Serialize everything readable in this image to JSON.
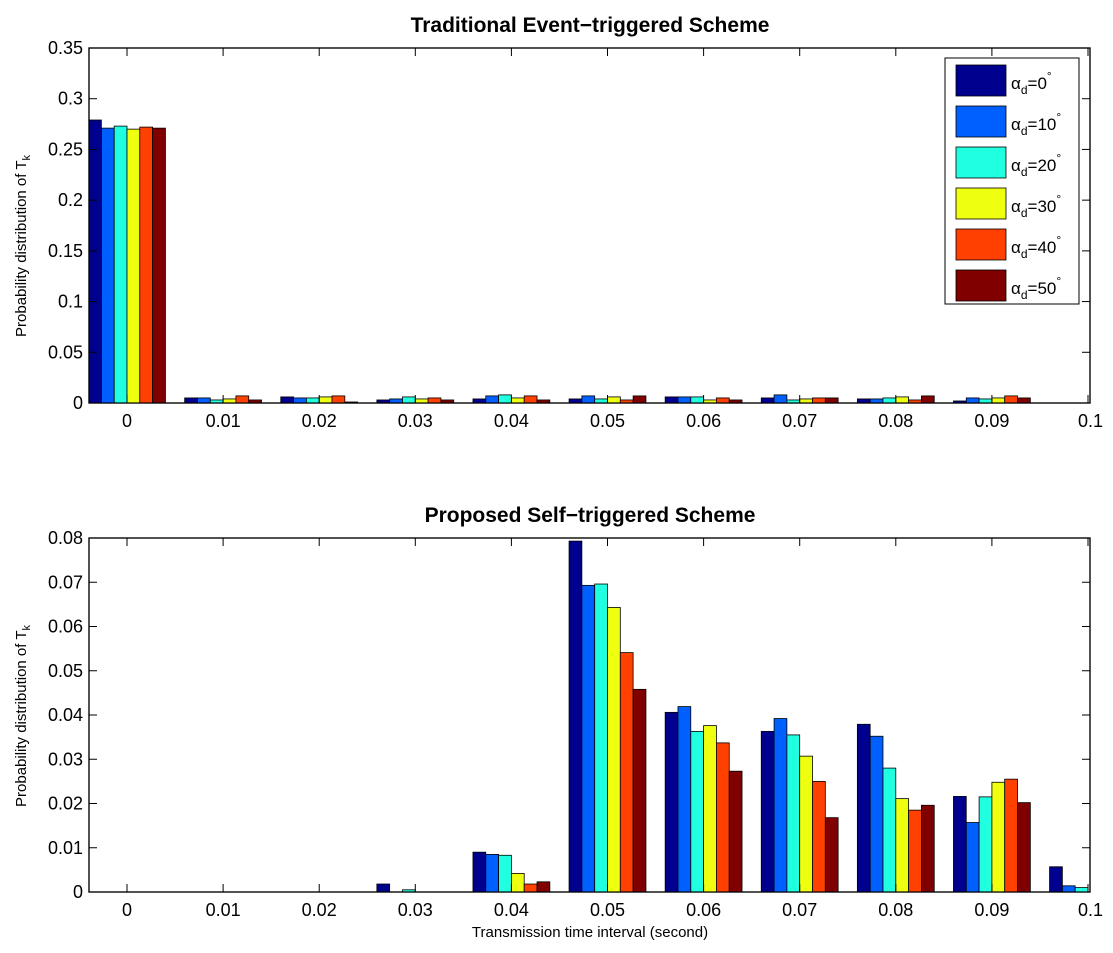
{
  "chart_data": [
    {
      "type": "bar",
      "title": "Traditional Event−triggered Scheme",
      "ylabel": "Probability distribution of T",
      "ylabel_sub": "k",
      "xlabel": "",
      "ylim": [
        0,
        0.35
      ],
      "yticks": [
        "0",
        "0.05",
        "0.1",
        "0.15",
        "0.2",
        "0.25",
        "0.3",
        "0.35"
      ],
      "categories": [
        "0",
        "0.01",
        "0.02",
        "0.03",
        "0.04",
        "0.05",
        "0.06",
        "0.07",
        "0.08",
        "0.09",
        "0.1"
      ],
      "legend_position": "top-right",
      "series": [
        {
          "name": "α_d=0°",
          "label_main": "α",
          "label_sub": "d",
          "label_rest": "=0",
          "label_deg": "°",
          "color": "#00008f",
          "values": [
            0.279,
            0.005,
            0.006,
            0.003,
            0.004,
            0.004,
            0.006,
            0.005,
            0.004,
            0.002,
            0.0
          ]
        },
        {
          "name": "α_d=10°",
          "label_main": "α",
          "label_sub": "d",
          "label_rest": "=10",
          "label_deg": "°",
          "color": "#005fff",
          "values": [
            0.271,
            0.005,
            0.005,
            0.004,
            0.007,
            0.007,
            0.006,
            0.008,
            0.004,
            0.005,
            0.0
          ]
        },
        {
          "name": "α_d=20°",
          "label_main": "α",
          "label_sub": "d",
          "label_rest": "=20",
          "label_deg": "°",
          "color": "#20ffdf",
          "values": [
            0.273,
            0.003,
            0.005,
            0.006,
            0.008,
            0.004,
            0.006,
            0.003,
            0.005,
            0.004,
            0.0
          ]
        },
        {
          "name": "α_d=30°",
          "label_main": "α",
          "label_sub": "d",
          "label_rest": "=30",
          "label_deg": "°",
          "color": "#efff10",
          "values": [
            0.27,
            0.004,
            0.006,
            0.004,
            0.005,
            0.006,
            0.003,
            0.004,
            0.006,
            0.005,
            0.0
          ]
        },
        {
          "name": "α_d=40°",
          "label_main": "α",
          "label_sub": "d",
          "label_rest": "=40",
          "label_deg": "°",
          "color": "#ff4000",
          "values": [
            0.272,
            0.007,
            0.007,
            0.005,
            0.007,
            0.003,
            0.005,
            0.005,
            0.003,
            0.007,
            0.0
          ]
        },
        {
          "name": "α_d=50°",
          "label_main": "α",
          "label_sub": "d",
          "label_rest": "=50",
          "label_deg": "°",
          "color": "#800000",
          "values": [
            0.271,
            0.003,
            0.001,
            0.003,
            0.003,
            0.007,
            0.003,
            0.005,
            0.007,
            0.005,
            0.001
          ]
        }
      ]
    },
    {
      "type": "bar",
      "title": "Proposed Self−triggered Scheme",
      "ylabel": "Probability distribution of T",
      "ylabel_sub": "k",
      "xlabel": "Transmission time interval (second)",
      "ylim": [
        0,
        0.08
      ],
      "yticks": [
        "0",
        "0.01",
        "0.02",
        "0.03",
        "0.04",
        "0.05",
        "0.06",
        "0.07",
        "0.08"
      ],
      "categories": [
        "0",
        "0.01",
        "0.02",
        "0.03",
        "0.04",
        "0.05",
        "0.06",
        "0.07",
        "0.08",
        "0.09",
        "0.1"
      ],
      "series": [
        {
          "name": "α_d=0°",
          "color": "#00008f",
          "values": [
            0,
            0,
            0,
            0.0018,
            0.009,
            0.0793,
            0.0406,
            0.0363,
            0.0379,
            0.0216,
            0.0057
          ]
        },
        {
          "name": "α_d=10°",
          "color": "#005fff",
          "values": [
            0,
            0,
            0,
            0,
            0.0085,
            0.0693,
            0.0419,
            0.0392,
            0.0352,
            0.0157,
            0.0014
          ]
        },
        {
          "name": "α_d=20°",
          "color": "#20ffdf",
          "values": [
            0,
            0,
            0,
            0.0005,
            0.0083,
            0.0696,
            0.0363,
            0.0355,
            0.028,
            0.0215,
            0.001
          ]
        },
        {
          "name": "α_d=30°",
          "color": "#efff10",
          "values": [
            0,
            0,
            0,
            0,
            0.0042,
            0.0643,
            0.0376,
            0.0307,
            0.0211,
            0.0248,
            0
          ]
        },
        {
          "name": "α_d=40°",
          "color": "#ff4000",
          "values": [
            0,
            0,
            0,
            0,
            0.0018,
            0.0541,
            0.0337,
            0.025,
            0.0185,
            0.0255,
            0
          ]
        },
        {
          "name": "α_d=50°",
          "color": "#800000",
          "values": [
            0,
            0,
            0,
            0,
            0.0023,
            0.0458,
            0.0273,
            0.0168,
            0.0196,
            0.0202,
            0
          ]
        }
      ]
    }
  ]
}
